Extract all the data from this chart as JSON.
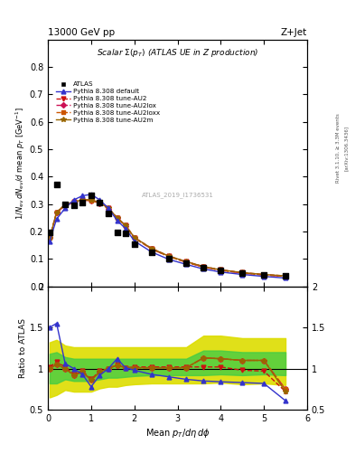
{
  "title_left": "13000 GeV pp",
  "title_right": "Z+Jet",
  "plot_title": "Scalar Σ(p_T) (ATLAS UE in Z production)",
  "watermark": "ATLAS_2019_I1736531",
  "right_label1": "Rivet 3.1.10, ≥ 3.3M events",
  "right_label2": "[arXiv:1306.3436]",
  "xlim": [
    0,
    6
  ],
  "ylim_main": [
    0,
    0.9
  ],
  "ylim_ratio": [
    0.5,
    2.0
  ],
  "yticks_main": [
    0.0,
    0.1,
    0.2,
    0.3,
    0.4,
    0.5,
    0.6,
    0.7,
    0.8
  ],
  "yticks_ratio": [
    0.5,
    1.0,
    1.5,
    2.0
  ],
  "xticks": [
    0,
    1,
    2,
    3,
    4,
    5,
    6
  ],
  "atlas_x": [
    0.04,
    0.2,
    0.4,
    0.6,
    0.8,
    1.0,
    1.2,
    1.4,
    1.6,
    1.8,
    2.0,
    2.4,
    2.8,
    3.2,
    3.6,
    4.0,
    4.5,
    5.0,
    5.5
  ],
  "atlas_y": [
    0.195,
    0.37,
    0.3,
    0.295,
    0.305,
    0.33,
    0.305,
    0.265,
    0.198,
    0.192,
    0.155,
    0.125,
    0.1,
    0.085,
    0.068,
    0.058,
    0.048,
    0.04,
    0.038
  ],
  "pythia_default_x": [
    0.04,
    0.2,
    0.4,
    0.6,
    0.8,
    1.0,
    1.2,
    1.4,
    1.6,
    1.8,
    2.0,
    2.4,
    2.8,
    3.2,
    3.6,
    4.0,
    4.5,
    5.0,
    5.5
  ],
  "pythia_default_y": [
    0.165,
    0.245,
    0.285,
    0.315,
    0.33,
    0.335,
    0.315,
    0.285,
    0.24,
    0.21,
    0.165,
    0.125,
    0.098,
    0.08,
    0.063,
    0.052,
    0.043,
    0.036,
    0.03
  ],
  "pythia_au2_x": [
    0.04,
    0.2,
    0.4,
    0.6,
    0.8,
    1.0,
    1.2,
    1.4,
    1.6,
    1.8,
    2.0,
    2.4,
    2.8,
    3.2,
    3.6,
    4.0,
    4.5,
    5.0,
    5.5
  ],
  "pythia_au2_y": [
    0.175,
    0.27,
    0.298,
    0.308,
    0.315,
    0.315,
    0.305,
    0.285,
    0.25,
    0.222,
    0.178,
    0.138,
    0.11,
    0.09,
    0.072,
    0.06,
    0.05,
    0.043,
    0.038
  ],
  "pythia_au2lox_x": [
    0.04,
    0.2,
    0.4,
    0.6,
    0.8,
    1.0,
    1.2,
    1.4,
    1.6,
    1.8,
    2.0,
    2.4,
    2.8,
    3.2,
    3.6,
    4.0,
    4.5,
    5.0,
    5.5
  ],
  "pythia_au2lox_y": [
    0.175,
    0.268,
    0.295,
    0.305,
    0.313,
    0.313,
    0.303,
    0.283,
    0.248,
    0.22,
    0.176,
    0.136,
    0.108,
    0.088,
    0.07,
    0.058,
    0.048,
    0.041,
    0.036
  ],
  "pythia_au2loxx_x": [
    0.04,
    0.2,
    0.4,
    0.6,
    0.8,
    1.0,
    1.2,
    1.4,
    1.6,
    1.8,
    2.0,
    2.4,
    2.8,
    3.2,
    3.6,
    4.0,
    4.5,
    5.0,
    5.5
  ],
  "pythia_au2loxx_y": [
    0.175,
    0.268,
    0.295,
    0.305,
    0.313,
    0.313,
    0.303,
    0.283,
    0.248,
    0.22,
    0.176,
    0.136,
    0.108,
    0.088,
    0.07,
    0.058,
    0.048,
    0.041,
    0.036
  ],
  "pythia_au2m_x": [
    0.04,
    0.2,
    0.4,
    0.6,
    0.8,
    1.0,
    1.2,
    1.4,
    1.6,
    1.8,
    2.0,
    2.4,
    2.8,
    3.2,
    3.6,
    4.0,
    4.5,
    5.0,
    5.5
  ],
  "pythia_au2m_y": [
    0.175,
    0.27,
    0.298,
    0.308,
    0.315,
    0.315,
    0.305,
    0.285,
    0.25,
    0.222,
    0.178,
    0.138,
    0.11,
    0.09,
    0.072,
    0.06,
    0.05,
    0.043,
    0.038
  ],
  "ratio_default_y": [
    1.5,
    1.55,
    1.06,
    1.0,
    0.93,
    0.78,
    0.92,
    1.0,
    1.12,
    1.01,
    0.98,
    0.93,
    0.9,
    0.87,
    0.85,
    0.84,
    0.83,
    0.82,
    0.61
  ],
  "ratio_au2_y": [
    1.02,
    1.08,
    1.02,
    0.93,
    0.97,
    0.87,
    0.97,
    1.0,
    1.05,
    1.01,
    1.02,
    1.02,
    1.02,
    1.02,
    1.02,
    1.02,
    0.98,
    0.97,
    0.72
  ],
  "ratio_au2lox_y": [
    1.0,
    1.05,
    1.0,
    0.92,
    0.96,
    0.86,
    0.96,
    1.0,
    1.04,
    1.01,
    1.01,
    1.01,
    1.01,
    1.01,
    1.13,
    1.12,
    1.1,
    1.1,
    0.75
  ],
  "ratio_au2loxx_y": [
    1.0,
    1.05,
    1.0,
    0.92,
    0.96,
    0.86,
    0.96,
    1.0,
    1.04,
    1.01,
    1.01,
    1.01,
    1.01,
    1.01,
    1.13,
    1.12,
    1.1,
    1.1,
    0.75
  ],
  "ratio_au2m_y": [
    1.0,
    1.05,
    1.0,
    0.92,
    0.96,
    0.86,
    0.96,
    1.0,
    1.04,
    1.01,
    1.01,
    1.01,
    1.01,
    1.01,
    1.13,
    1.12,
    1.1,
    1.1,
    0.72
  ],
  "green_band_lo": [
    0.82,
    0.82,
    0.87,
    0.85,
    0.85,
    0.85,
    0.87,
    0.89,
    0.89,
    0.9,
    0.91,
    0.92,
    0.92,
    0.92,
    0.92,
    0.93,
    0.92,
    0.93,
    0.92
  ],
  "green_band_hi": [
    1.18,
    1.2,
    1.14,
    1.12,
    1.12,
    1.12,
    1.12,
    1.12,
    1.12,
    1.12,
    1.12,
    1.12,
    1.12,
    1.12,
    1.22,
    1.22,
    1.2,
    1.2,
    1.2
  ],
  "yellow_band_lo": [
    0.65,
    0.68,
    0.74,
    0.72,
    0.72,
    0.72,
    0.76,
    0.78,
    0.78,
    0.8,
    0.81,
    0.82,
    0.82,
    0.82,
    0.82,
    0.83,
    0.81,
    0.82,
    0.8
  ],
  "yellow_band_hi": [
    1.32,
    1.35,
    1.28,
    1.26,
    1.26,
    1.26,
    1.26,
    1.26,
    1.26,
    1.26,
    1.26,
    1.26,
    1.26,
    1.26,
    1.4,
    1.4,
    1.37,
    1.37,
    1.37
  ],
  "color_atlas": "#000000",
  "color_default": "#3333cc",
  "color_au2": "#cc1111",
  "color_au2lox": "#cc1155",
  "color_au2loxx": "#cc5500",
  "color_au2m": "#996600",
  "color_green": "#44cc44",
  "color_yellow": "#dddd00",
  "bg_color": "#ffffff"
}
